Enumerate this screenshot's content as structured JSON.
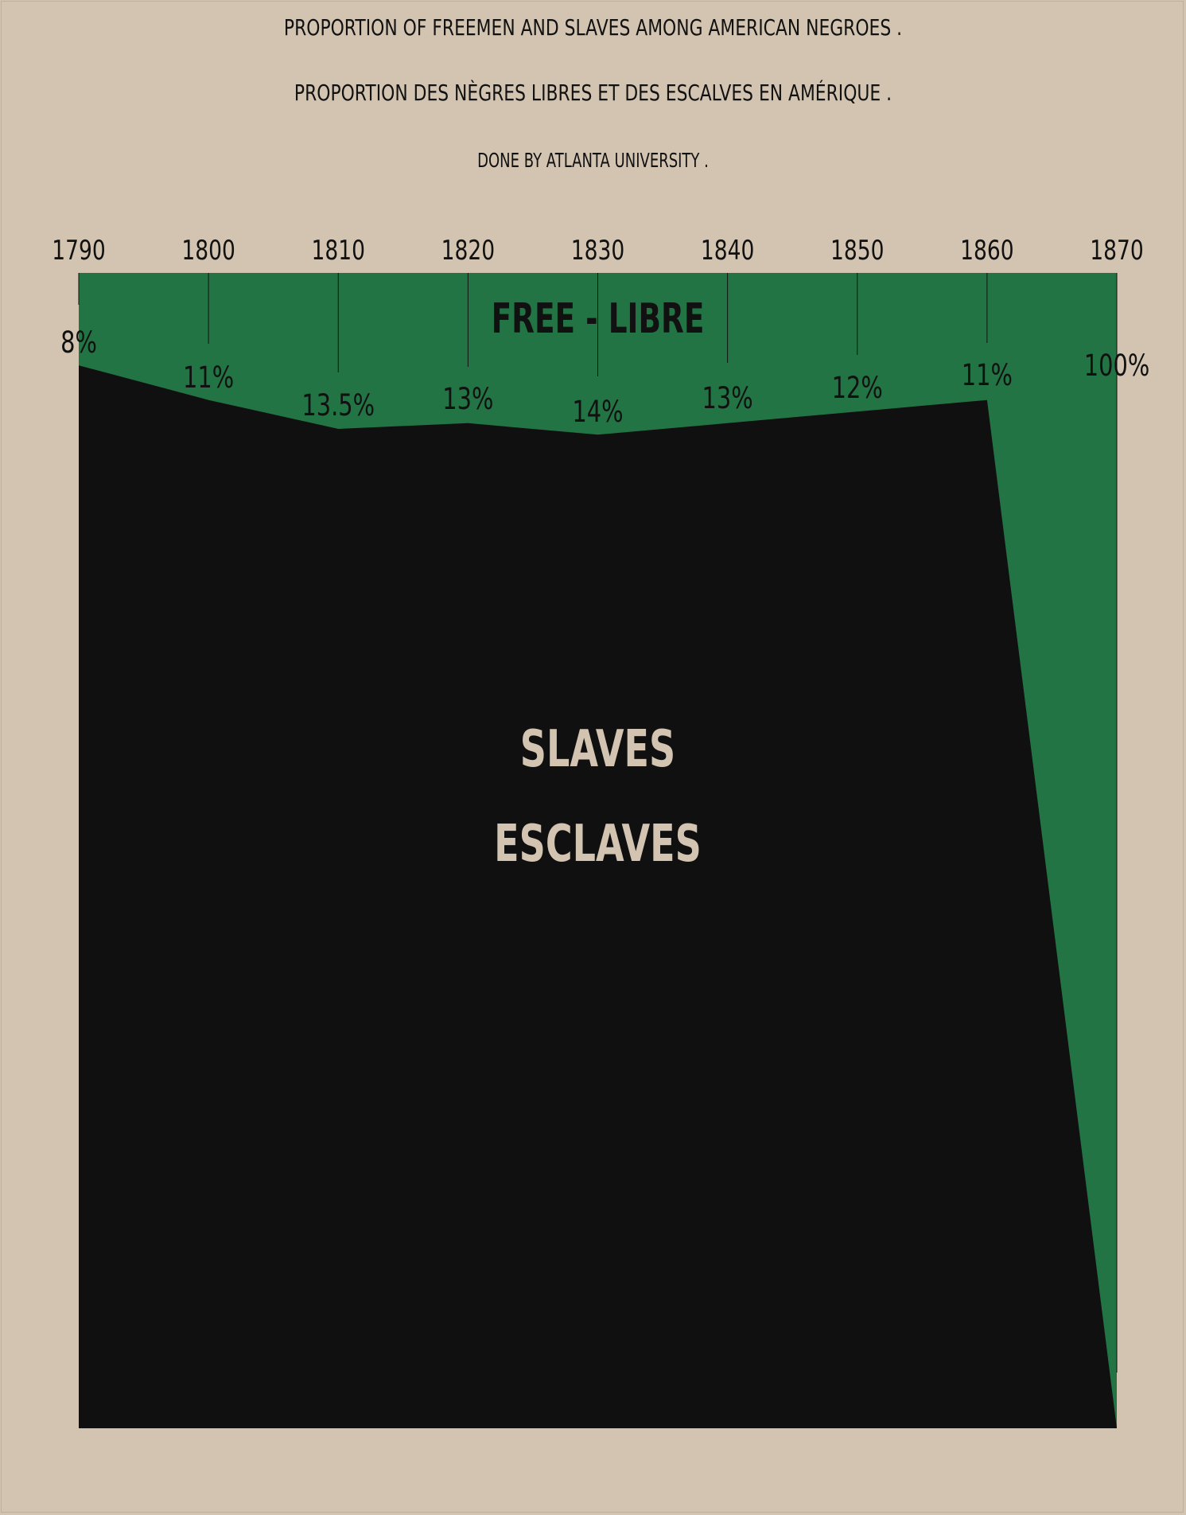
{
  "titles": {
    "title1": "PROPORTION OF FREEMEN AND SLAVES AMONG AMERICAN NEGROES .",
    "title2": "PROPORTION DES NÈGRES LIBRES ET DES ESCALVES EN AMÉRIQUE .",
    "credit": "DONE BY ATLANTA UNIVERSITY ."
  },
  "colors": {
    "background": "#d2c4b0",
    "free": "#237444",
    "slaves": "#101010",
    "slave_label": "#d2c4b0",
    "text": "#111111"
  },
  "chart_data": {
    "type": "area",
    "x": [
      1790,
      1800,
      1810,
      1820,
      1830,
      1840,
      1850,
      1860,
      1870
    ],
    "tick_labels": [
      "1790",
      "1800",
      "1810",
      "1820",
      "1830",
      "1840",
      "1850",
      "1860",
      "1870"
    ],
    "series": [
      {
        "name": "FREE - LIBRE",
        "values": [
          8,
          11,
          13.5,
          13,
          14,
          13,
          12,
          11,
          100
        ],
        "labels": [
          "8%",
          "11%",
          "13.5%",
          "13%",
          "14%",
          "13%",
          "12%",
          "11%",
          "100%"
        ]
      },
      {
        "name_lines": [
          "SLAVES",
          "ESCLAVES"
        ],
        "values": [
          92,
          89,
          86.5,
          87,
          86,
          87,
          88,
          89,
          0
        ]
      }
    ],
    "stacking": "percent",
    "ylim": [
      0,
      100
    ],
    "xaxis_position": "top"
  }
}
